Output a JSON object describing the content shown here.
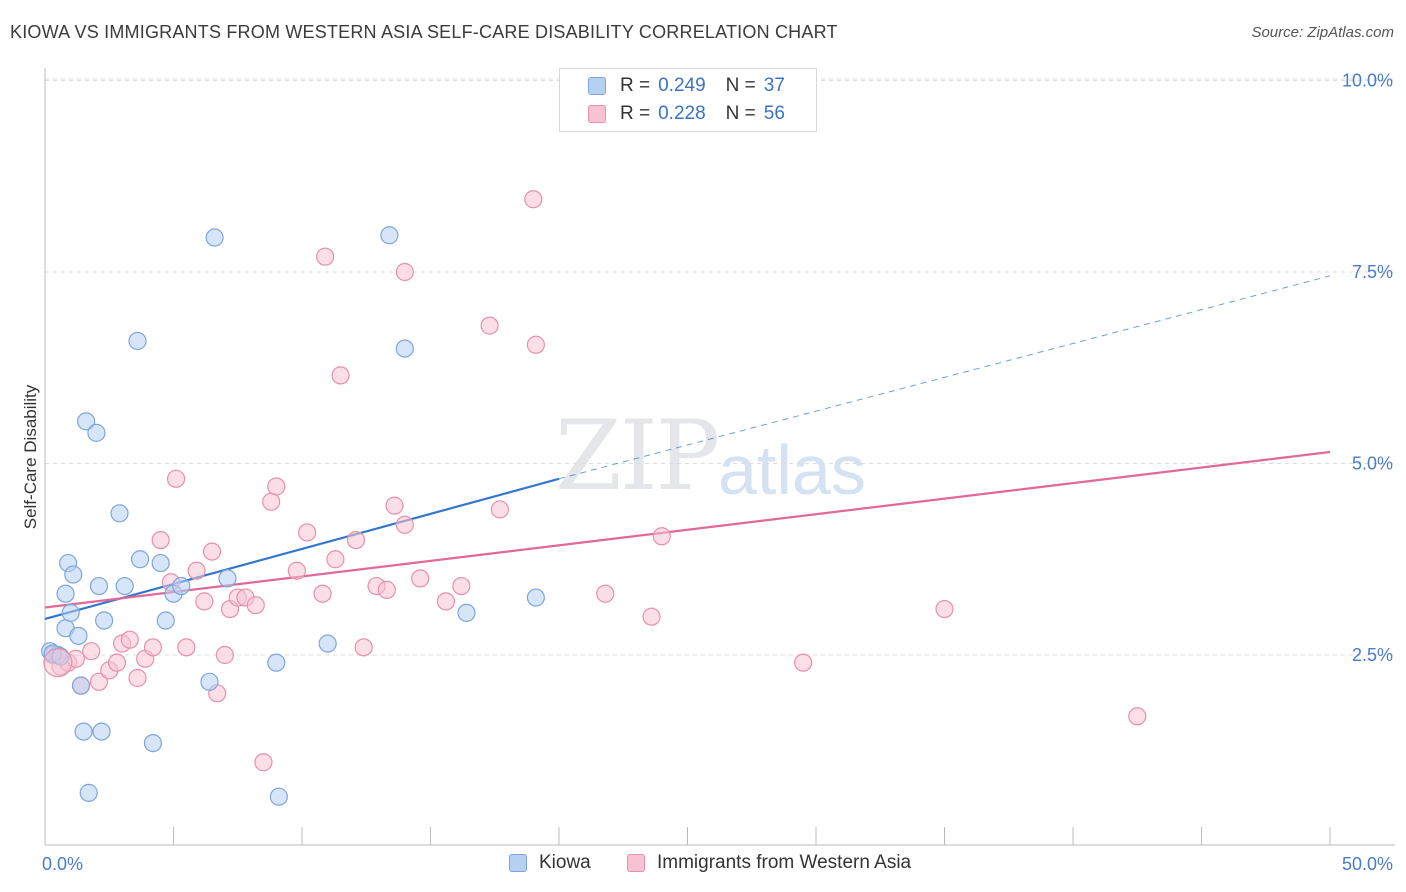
{
  "header": {
    "title": "KIOWA VS IMMIGRANTS FROM WESTERN ASIA SELF-CARE DISABILITY CORRELATION CHART",
    "source": "Source: ZipAtlas.com"
  },
  "watermark": {
    "zip": "ZIP",
    "atlas": "atlas"
  },
  "legend_top": [
    {
      "r_label": "R = ",
      "r_value": "0.249",
      "n_label": "N = ",
      "n_value": "37"
    },
    {
      "r_label": "R = ",
      "r_value": "0.228",
      "n_label": "N = ",
      "n_value": "56"
    }
  ],
  "legend_bottom": [
    "Kiowa",
    "Immigrants from Western Asia"
  ],
  "colors": {
    "kiowa_fill": "#b6d0f2",
    "kiowa_stroke": "#7ea6dd",
    "kiowa_line": "#3377cc",
    "imm_fill": "#f7c3d2",
    "imm_stroke": "#e890ab",
    "imm_line": "#e0689a",
    "tick_text": "#4a7cc9",
    "grid": "#dcdcdc"
  },
  "chart_data": {
    "type": "scatter",
    "title": "KIOWA VS IMMIGRANTS FROM WESTERN ASIA SELF-CARE DISABILITY CORRELATION CHART",
    "xlabel": "",
    "ylabel": "Self-Care Disability",
    "xlim": [
      0,
      50
    ],
    "ylim": [
      0,
      10.5
    ],
    "x_tick_labels": [
      "0.0%",
      "50.0%"
    ],
    "y_ticks": [
      2.5,
      5.0,
      7.5,
      10.0
    ],
    "y_tick_labels": [
      "2.5%",
      "5.0%",
      "7.5%",
      "10.0%"
    ],
    "grid": true,
    "legend_position": "top-center",
    "series": [
      {
        "name": "Kiowa",
        "points": [
          [
            0.2,
            2.55
          ],
          [
            0.5,
            2.5
          ],
          [
            0.8,
            2.85
          ],
          [
            0.8,
            3.3
          ],
          [
            0.9,
            3.7
          ],
          [
            1.0,
            3.05
          ],
          [
            1.1,
            3.55
          ],
          [
            1.3,
            2.75
          ],
          [
            1.4,
            2.1
          ],
          [
            1.5,
            1.5
          ],
          [
            1.6,
            5.55
          ],
          [
            1.7,
            0.7
          ],
          [
            2.0,
            5.4
          ],
          [
            2.1,
            3.4
          ],
          [
            2.2,
            1.5
          ],
          [
            2.3,
            2.95
          ],
          [
            2.9,
            4.35
          ],
          [
            3.1,
            3.4
          ],
          [
            3.6,
            6.6
          ],
          [
            3.7,
            3.75
          ],
          [
            4.2,
            1.35
          ],
          [
            4.5,
            3.7
          ],
          [
            4.7,
            2.95
          ],
          [
            5.0,
            3.3
          ],
          [
            5.3,
            3.4
          ],
          [
            6.4,
            2.15
          ],
          [
            6.6,
            7.95
          ],
          [
            7.1,
            3.5
          ],
          [
            9.0,
            2.4
          ],
          [
            9.1,
            0.65
          ],
          [
            11.0,
            2.65
          ],
          [
            13.4,
            7.98
          ],
          [
            14.0,
            6.5
          ],
          [
            16.4,
            3.05
          ],
          [
            19.1,
            3.25
          ],
          [
            0.3,
            2.52
          ],
          [
            0.6,
            2.48
          ]
        ]
      },
      {
        "name": "Immigrants from Western Asia",
        "points": [
          [
            0.3,
            2.5
          ],
          [
            0.6,
            2.35
          ],
          [
            0.9,
            2.4
          ],
          [
            1.2,
            2.45
          ],
          [
            1.4,
            2.1
          ],
          [
            1.8,
            2.55
          ],
          [
            2.1,
            2.15
          ],
          [
            2.5,
            2.3
          ],
          [
            2.8,
            2.4
          ],
          [
            3.0,
            2.65
          ],
          [
            3.3,
            2.7
          ],
          [
            3.6,
            2.2
          ],
          [
            3.9,
            2.45
          ],
          [
            4.2,
            2.6
          ],
          [
            4.5,
            4.0
          ],
          [
            4.9,
            3.45
          ],
          [
            5.1,
            4.8
          ],
          [
            5.5,
            2.6
          ],
          [
            5.9,
            3.6
          ],
          [
            6.2,
            3.2
          ],
          [
            6.5,
            3.85
          ],
          [
            6.7,
            2.0
          ],
          [
            7.0,
            2.5
          ],
          [
            7.2,
            3.1
          ],
          [
            7.5,
            3.25
          ],
          [
            7.8,
            3.25
          ],
          [
            8.2,
            3.15
          ],
          [
            8.5,
            1.1
          ],
          [
            8.8,
            4.5
          ],
          [
            9.0,
            4.7
          ],
          [
            9.8,
            3.6
          ],
          [
            10.2,
            4.1
          ],
          [
            10.8,
            3.3
          ],
          [
            10.9,
            7.7
          ],
          [
            11.3,
            3.75
          ],
          [
            11.5,
            6.15
          ],
          [
            12.1,
            4.0
          ],
          [
            12.4,
            2.6
          ],
          [
            12.9,
            3.4
          ],
          [
            13.3,
            3.35
          ],
          [
            13.6,
            4.45
          ],
          [
            14.0,
            4.2
          ],
          [
            14.0,
            7.5
          ],
          [
            14.6,
            3.5
          ],
          [
            15.6,
            3.2
          ],
          [
            16.2,
            3.4
          ],
          [
            17.3,
            6.8
          ],
          [
            17.7,
            4.4
          ],
          [
            19.1,
            6.55
          ],
          [
            19.0,
            8.45
          ],
          [
            21.8,
            3.3
          ],
          [
            23.6,
            3.0
          ],
          [
            24.0,
            4.05
          ],
          [
            29.5,
            2.4
          ],
          [
            35.0,
            3.1
          ],
          [
            42.5,
            1.7
          ]
        ]
      }
    ],
    "trend_lines": [
      {
        "series": "Kiowa",
        "solid": [
          [
            0,
            2.97
          ],
          [
            20,
            4.8
          ]
        ],
        "dashed": [
          [
            20,
            4.8
          ],
          [
            50,
            7.45
          ]
        ]
      },
      {
        "series": "Immigrants from Western Asia",
        "solid": [
          [
            0,
            3.12
          ],
          [
            50,
            5.15
          ]
        ]
      }
    ]
  }
}
